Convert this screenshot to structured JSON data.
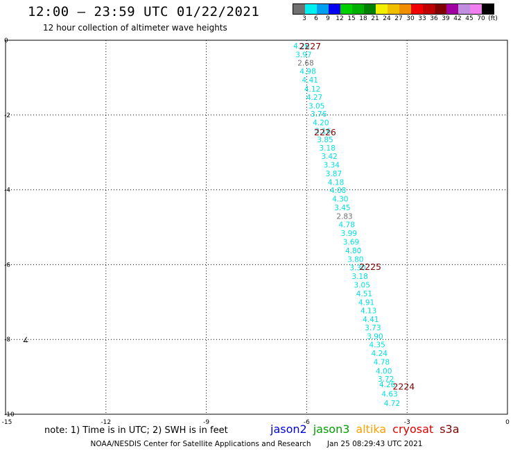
{
  "header": {
    "title": "12:00 – 23:59 UTC 01/22/2021",
    "subtitle": "12 hour collection of altimeter wave heights"
  },
  "colorbar": {
    "labels": [
      "3",
      "6",
      "9",
      "12",
      "15",
      "18",
      "21",
      "24",
      "27",
      "30",
      "33",
      "36",
      "39",
      "42",
      "45",
      "70",
      "(ft)"
    ],
    "colors": [
      "#707070",
      "#00f0f0",
      "#00a0f0",
      "#0000f0",
      "#00d000",
      "#00b000",
      "#008000",
      "#f0f000",
      "#f0c000",
      "#f09000",
      "#f00000",
      "#c00000",
      "#800000",
      "#a000a0",
      "#c090e0",
      "#f080f0",
      "#000000"
    ]
  },
  "map": {
    "x_ticks": [
      "-15",
      "-12",
      "-9",
      "-6",
      "-3",
      "0"
    ],
    "y_ticks": [
      "0",
      "-2",
      "-4",
      "-6",
      "-8",
      "-10"
    ],
    "lon_range": [
      -15,
      0
    ],
    "lat_range": [
      -10,
      0
    ],
    "track": [
      {
        "v": "4.26",
        "c": "cyan",
        "lat": -0.15
      },
      {
        "v": "3.97",
        "c": "cyan",
        "lat": -0.38
      },
      {
        "v": "2.68",
        "c": "gray",
        "lat": -0.6
      },
      {
        "v": "4.98",
        "c": "cyan",
        "lat": -0.83
      },
      {
        "v": "4.41",
        "c": "cyan",
        "lat": -1.06
      },
      {
        "v": "4.12",
        "c": "cyan",
        "lat": -1.3
      },
      {
        "v": "4.27",
        "c": "cyan",
        "lat": -1.52
      },
      {
        "v": "3.05",
        "c": "cyan",
        "lat": -1.75
      },
      {
        "v": "3.76",
        "c": "cyan",
        "lat": -1.97
      },
      {
        "v": "4.20",
        "c": "cyan",
        "lat": -2.2
      },
      {
        "v": "3.16",
        "c": "cyan",
        "lat": -2.42
      },
      {
        "v": "3.85",
        "c": "cyan",
        "lat": -2.65
      },
      {
        "v": "3.18",
        "c": "cyan",
        "lat": -2.88
      },
      {
        "v": "3.42",
        "c": "cyan",
        "lat": -3.1
      },
      {
        "v": "3.34",
        "c": "cyan",
        "lat": -3.33
      },
      {
        "v": "3.87",
        "c": "cyan",
        "lat": -3.56
      },
      {
        "v": "4.18",
        "c": "cyan",
        "lat": -3.79
      },
      {
        "v": "4.08",
        "c": "cyan",
        "lat": -4.01
      },
      {
        "v": "4.30",
        "c": "cyan",
        "lat": -4.24
      },
      {
        "v": "3.45",
        "c": "cyan",
        "lat": -4.47
      },
      {
        "v": "2.83",
        "c": "gray",
        "lat": -4.7
      },
      {
        "v": "4.78",
        "c": "cyan",
        "lat": -4.93
      },
      {
        "v": "3.99",
        "c": "cyan",
        "lat": -5.16
      },
      {
        "v": "3.69",
        "c": "cyan",
        "lat": -5.39
      },
      {
        "v": "4.80",
        "c": "cyan",
        "lat": -5.62
      },
      {
        "v": "3.80",
        "c": "cyan",
        "lat": -5.85
      },
      {
        "v": "3.30",
        "c": "cyan",
        "lat": -6.08
      },
      {
        "v": "3.18",
        "c": "cyan",
        "lat": -6.31
      },
      {
        "v": "3.05",
        "c": "cyan",
        "lat": -6.54
      },
      {
        "v": "4.51",
        "c": "cyan",
        "lat": -6.77
      },
      {
        "v": "4.91",
        "c": "cyan",
        "lat": -7.0
      },
      {
        "v": "4.13",
        "c": "cyan",
        "lat": -7.23
      },
      {
        "v": "4.41",
        "c": "cyan",
        "lat": -7.46
      },
      {
        "v": "3.73",
        "c": "cyan",
        "lat": -7.68
      },
      {
        "v": "3.90",
        "c": "cyan",
        "lat": -7.91
      },
      {
        "v": "4.35",
        "c": "cyan",
        "lat": -8.14
      },
      {
        "v": "4.24",
        "c": "cyan",
        "lat": -8.37
      },
      {
        "v": "4.78",
        "c": "cyan",
        "lat": -8.6
      },
      {
        "v": "4.00",
        "c": "cyan",
        "lat": -8.84
      },
      {
        "v": "3.72",
        "c": "cyan",
        "lat": -9.05
      },
      {
        "v": "4.26",
        "c": "cyan",
        "lat": -9.2
      },
      {
        "v": "4.63",
        "c": "cyan",
        "lat": -9.45
      },
      {
        "v": "4.72",
        "c": "cyan",
        "lat": -9.7
      }
    ],
    "time_labels": [
      {
        "t": "2227",
        "lon": -5.9,
        "lat": -0.15
      },
      {
        "t": "2226",
        "lon": -5.45,
        "lat": -2.45
      },
      {
        "t": "2225",
        "lon": -4.1,
        "lat": -6.05
      },
      {
        "t": "2224",
        "lon": -3.1,
        "lat": -9.25
      }
    ],
    "point_glyph": {
      "char": "∡",
      "lon": -14.4,
      "lat": -8.0
    }
  },
  "note": "note: 1) Time is in UTC; 2) SWH is in feet",
  "legend": [
    {
      "name": "jason2",
      "color": "#0000e0"
    },
    {
      "name": "jason3",
      "color": "#00a000"
    },
    {
      "name": "altika",
      "color": "#ffa000"
    },
    {
      "name": "cryosat",
      "color": "#e00000"
    },
    {
      "name": "s3a",
      "color": "#800000"
    }
  ],
  "footer": {
    "left": "NOAA/NESDIS Center for Satellite Applications and Research",
    "right": "Jan 25 08:29:43 UTC 2021"
  }
}
